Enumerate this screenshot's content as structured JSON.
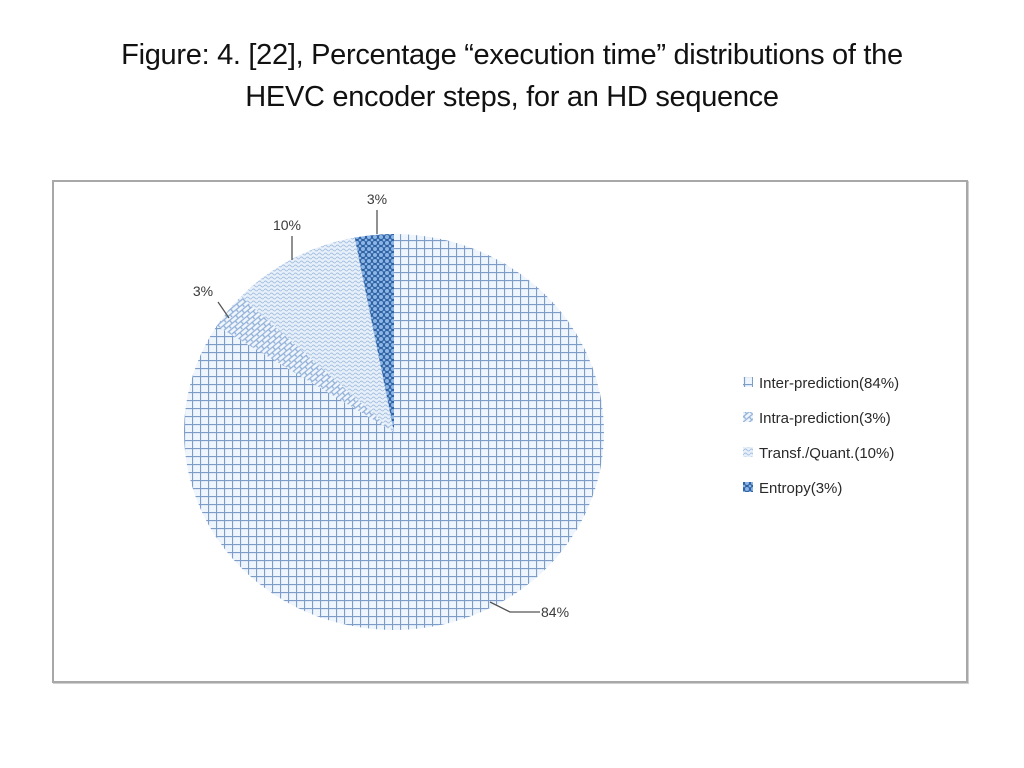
{
  "title": {
    "line1": "Figure: 4. [22], Percentage “execution time” distributions of the",
    "line2": "HEVC encoder steps, for an HD sequence"
  },
  "chart_data": {
    "type": "pie",
    "title": "Figure: 4. [22], Percentage “execution time” distributions of the HEVC encoder steps, for an HD sequence",
    "start_angle_deg": 0,
    "direction": "clockwise",
    "slices": [
      {
        "name": "Inter-prediction",
        "value": 84,
        "data_label": "84%",
        "legend": "Inter-prediction(84%)",
        "pattern": "grid",
        "color": "#8fb3dc"
      },
      {
        "name": "Intra-prediction",
        "value": 3,
        "data_label": "3%",
        "legend": "Intra-prediction(3%)",
        "pattern": "brick",
        "color": "#a9c4e4"
      },
      {
        "name": "Transf./Quant.",
        "value": 10,
        "data_label": "10%",
        "legend": "Transf./Quant.(10%)",
        "pattern": "wave",
        "color": "#b7cde8"
      },
      {
        "name": "Entropy",
        "value": 3,
        "data_label": "3%",
        "legend": "Entropy(3%)",
        "pattern": "dots",
        "color": "#4f81bd"
      }
    ],
    "legend_position": "right"
  }
}
